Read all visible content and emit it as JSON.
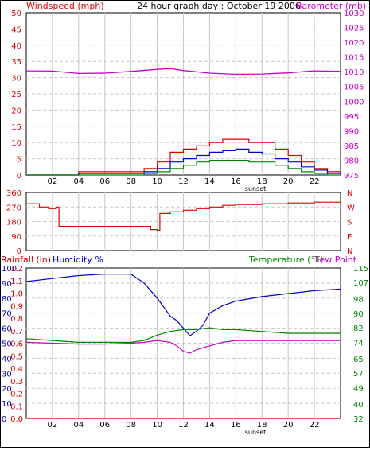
{
  "title": "24 hour graph day : October 19 2006",
  "colors": {
    "wind": "#dd0000",
    "gust_avg": "#0000cc",
    "wind_avg": "#008800",
    "baro": "#cc00cc",
    "dir": "#dd0000",
    "hum": "#0000cc",
    "temp": "#008800",
    "dew": "#cc00cc",
    "rain": "#cc0000",
    "grid": "#c8c8c8"
  },
  "chart_data": [
    {
      "id": "wind",
      "type": "line",
      "left_label": "Windspeed (mph)",
      "right_label": "Barometer (mb)",
      "x_ticks": [
        "02",
        "04",
        "06",
        "08",
        "10",
        "12",
        "14",
        "16",
        "18",
        "20",
        "22"
      ],
      "x_note": "sunset",
      "y_left_ticks": [
        0,
        5,
        10,
        15,
        20,
        25,
        30,
        35,
        40,
        45,
        50
      ],
      "y_left_range": [
        0,
        50
      ],
      "y_right_ticks": [
        975,
        980,
        985,
        990,
        995,
        1000,
        1005,
        1010,
        1015,
        1020,
        1025,
        1030
      ],
      "y_right_range": [
        975,
        1030
      ],
      "series": [
        {
          "key": "baro",
          "axis": "right",
          "x": [
            0,
            2,
            4,
            6,
            8,
            10,
            11,
            12,
            14,
            16,
            18,
            20,
            22,
            24
          ],
          "y": [
            1010.3,
            1010.2,
            1009.4,
            1009.5,
            1010.1,
            1010.8,
            1011.1,
            1010.4,
            1009.5,
            1009.1,
            1009.2,
            1009.6,
            1010.3,
            1010.1
          ]
        },
        {
          "key": "wind",
          "axis": "left",
          "x": [
            0,
            4,
            8,
            9,
            10,
            11,
            12,
            13,
            14,
            15,
            16,
            17,
            18,
            19,
            20,
            21,
            22,
            23,
            24
          ],
          "y": [
            0,
            1,
            1,
            2,
            4,
            7,
            8,
            9,
            10,
            11,
            11,
            10,
            10,
            8,
            6,
            4,
            2,
            1,
            0
          ]
        },
        {
          "key": "gust_avg",
          "axis": "left",
          "x": [
            0,
            4,
            8,
            9,
            10,
            11,
            12,
            13,
            14,
            15,
            16,
            17,
            18,
            19,
            20,
            21,
            22,
            23,
            24
          ],
          "y": [
            0,
            0.5,
            0.5,
            1,
            2,
            4,
            5,
            6,
            7,
            7.5,
            8,
            7,
            6.5,
            5,
            4,
            2.5,
            1.5,
            0.5,
            0
          ]
        },
        {
          "key": "wind_avg",
          "axis": "left",
          "x": [
            0,
            4,
            8,
            9,
            10,
            11,
            12,
            13,
            14,
            15,
            16,
            17,
            18,
            19,
            20,
            21,
            22,
            23,
            24
          ],
          "y": [
            0,
            0,
            0,
            0.5,
            1,
            2,
            3,
            4,
            4.5,
            4.5,
            4.5,
            4,
            4,
            3,
            2,
            1,
            0.5,
            0,
            0
          ]
        }
      ]
    },
    {
      "id": "dir",
      "type": "line",
      "y_left_ticks": [
        0,
        90,
        180,
        270,
        360
      ],
      "y_left_range": [
        0,
        360
      ],
      "y_right_ticks": [
        "N",
        "W",
        "S",
        "E",
        "N"
      ],
      "x_ticks": [],
      "series": [
        {
          "key": "dir",
          "x": [
            0,
            1,
            1.7,
            2.3,
            2.5,
            9.2,
            9.5,
            10,
            10.2,
            11,
            12,
            13,
            14,
            15,
            16,
            18,
            20,
            22,
            24
          ],
          "y": [
            290,
            270,
            260,
            270,
            150,
            150,
            130,
            125,
            230,
            240,
            250,
            260,
            270,
            280,
            285,
            290,
            295,
            300,
            305
          ]
        }
      ]
    },
    {
      "id": "temp",
      "type": "line",
      "left_label_1": "Rainfall (in)",
      "left_label_2": "Humidity %",
      "right_label_1": "Temperature (°F)",
      "right_label_2": "Dew Point",
      "x_ticks": [
        "02",
        "04",
        "06",
        "08",
        "10",
        "12",
        "14",
        "16",
        "18",
        "20",
        "22"
      ],
      "x_note": "sunset",
      "y_hum_ticks": [
        0,
        10,
        20,
        30,
        40,
        50,
        60,
        70,
        80,
        90,
        100
      ],
      "y_hum_range": [
        0,
        100
      ],
      "y_rain_ticks": [
        0.0,
        0.1,
        0.2,
        0.3,
        0.4,
        0.5,
        0.6,
        0.7,
        0.8,
        0.9,
        1.0,
        1.1,
        1.2
      ],
      "y_rain_range": [
        0,
        1.2
      ],
      "y_temp_ticks": [
        32,
        40,
        49,
        57,
        65,
        74,
        82,
        90,
        98,
        107,
        115
      ],
      "y_temp_range": [
        32,
        115
      ],
      "series": [
        {
          "key": "hum",
          "axis": "hum",
          "x": [
            0,
            2,
            4,
            6,
            8,
            9,
            10,
            11,
            11.5,
            12,
            12.5,
            13,
            13.5,
            14,
            15,
            16,
            18,
            20,
            22,
            24
          ],
          "y": [
            91,
            93,
            95,
            96,
            96,
            90,
            80,
            68,
            65,
            60,
            55,
            58,
            62,
            70,
            75,
            78,
            81,
            83,
            85,
            86
          ]
        },
        {
          "key": "temp",
          "axis": "temp",
          "x": [
            0,
            2,
            4,
            6,
            8,
            9,
            10,
            11,
            12,
            13,
            14,
            15,
            16,
            18,
            20,
            22,
            24
          ],
          "y": [
            76,
            75,
            74,
            74,
            74,
            75,
            78,
            80,
            81,
            81,
            82,
            81,
            81,
            80,
            79,
            79,
            79
          ]
        },
        {
          "key": "dew",
          "axis": "temp",
          "x": [
            0,
            2,
            4,
            6,
            8,
            9,
            10,
            11,
            11.5,
            12,
            12.5,
            13,
            14,
            15,
            16,
            18,
            20,
            22,
            24
          ],
          "y": [
            74,
            73.5,
            73,
            73,
            73.5,
            74,
            75,
            74,
            72,
            69,
            68,
            70,
            72,
            74,
            75,
            75,
            75,
            75,
            75
          ]
        },
        {
          "key": "rain",
          "axis": "rain",
          "x": [
            0,
            24
          ],
          "y": [
            0,
            0
          ]
        }
      ]
    }
  ]
}
